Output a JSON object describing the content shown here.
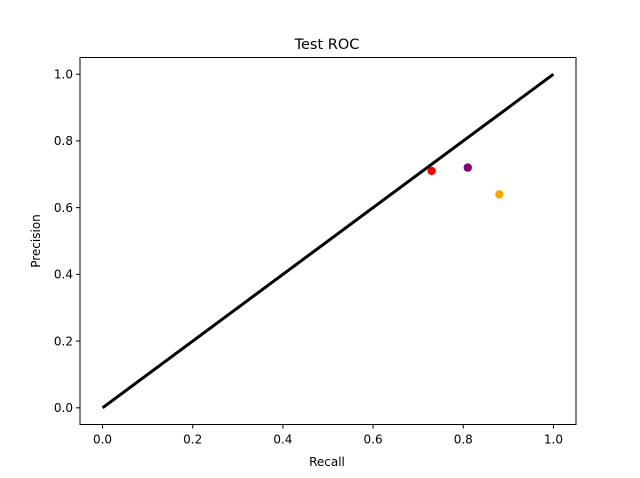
{
  "chart_data": {
    "type": "scatter",
    "title": "Test ROC",
    "xlabel": "Recall",
    "ylabel": "Precision",
    "xlim": [
      -0.05,
      1.05
    ],
    "ylim": [
      -0.05,
      1.05
    ],
    "xticks": [
      "0.0",
      "0.2",
      "0.4",
      "0.6",
      "0.8",
      "1.0"
    ],
    "yticks": [
      "0.0",
      "0.2",
      "0.4",
      "0.6",
      "0.8",
      "1.0"
    ],
    "grid": false,
    "legend": "none",
    "series": [
      {
        "type": "line",
        "color": "#000000",
        "x": [
          0.0,
          1.0
        ],
        "y": [
          0.0,
          1.0
        ]
      },
      {
        "type": "point",
        "color": "#ff0000",
        "x": [
          0.73
        ],
        "y": [
          0.71
        ]
      },
      {
        "type": "point",
        "color": "#800080",
        "x": [
          0.81
        ],
        "y": [
          0.72
        ]
      },
      {
        "type": "point",
        "color": "#ffa500",
        "x": [
          0.88
        ],
        "y": [
          0.64
        ]
      }
    ]
  }
}
